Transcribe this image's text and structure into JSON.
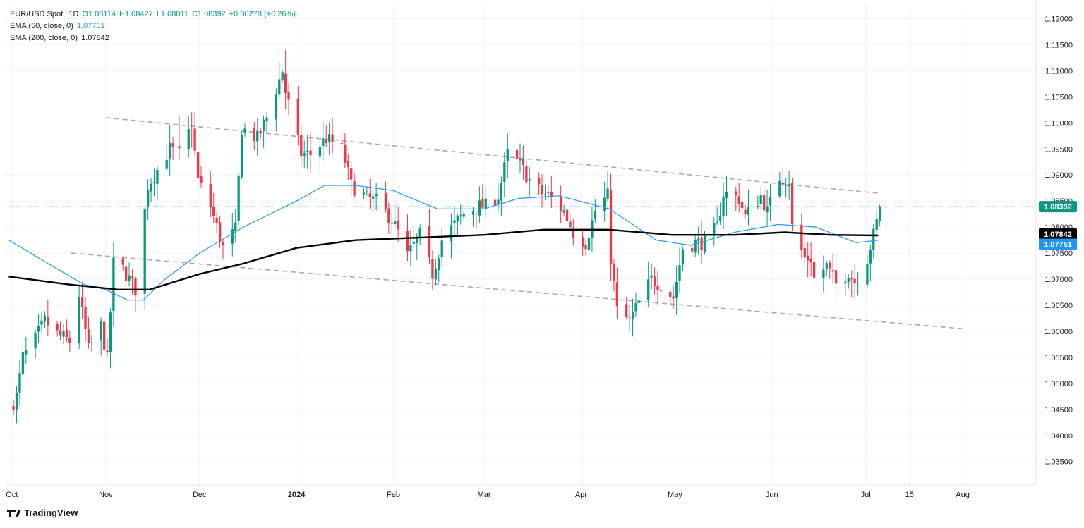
{
  "legend": {
    "symbol": "EUR/USD Spot",
    "interval": "1D",
    "open": "O1.08114",
    "high": "H1.08427",
    "low": "L1.08011",
    "close": "C1.08392",
    "change": "+0.00278 (+0.26%)",
    "ema50_label": "EMA (50, close, 0)",
    "ema50_value": "1.07751",
    "ema200_label": "EMA (200, close, 0)",
    "ema200_value": "1.07842"
  },
  "branding": {
    "logo_text": "TradingView"
  },
  "colors": {
    "up": "#089981",
    "down": "#f23645",
    "ema50": "#2196f3",
    "ema200": "#000000",
    "trend": "#a9a9a9",
    "last_price_line": "#089981",
    "grid": "#f0f3fa"
  },
  "price_labels": {
    "last": "1.08392",
    "ema200": "1.07842",
    "ema50": "1.07751"
  },
  "chart_data": {
    "type": "candlestick",
    "ylim": [
      1.0305,
      1.1225
    ],
    "xlim": [
      "2023-09-30",
      "2024-08-24"
    ],
    "y_ticks": [
      "1.12000",
      "1.11500",
      "1.11000",
      "1.10500",
      "1.10000",
      "1.09500",
      "1.09000",
      "1.08500",
      "1.08000",
      "1.07500",
      "1.07000",
      "1.06500",
      "1.06000",
      "1.05500",
      "1.05000",
      "1.04500",
      "1.04000",
      "1.03500"
    ],
    "x_ticks": [
      {
        "date": "2023-10-02",
        "label": "Oct"
      },
      {
        "date": "2023-11-01",
        "label": "Nov"
      },
      {
        "date": "2023-12-01",
        "label": "Dec"
      },
      {
        "date": "2024-01-01",
        "label": "2024"
      },
      {
        "date": "2024-02-01",
        "label": "Feb"
      },
      {
        "date": "2024-03-01",
        "label": "Mar"
      },
      {
        "date": "2024-04-01",
        "label": "Apr"
      },
      {
        "date": "2024-05-01",
        "label": "May"
      },
      {
        "date": "2024-06-01",
        "label": "Jun"
      },
      {
        "date": "2024-07-01",
        "label": "Jul"
      },
      {
        "date": "2024-07-15",
        "label": "15"
      },
      {
        "date": "2024-08-01",
        "label": "Aug"
      }
    ],
    "close_anchors": [
      [
        "2023-10-02",
        1.0465
      ],
      [
        "2023-10-03",
        1.0475
      ],
      [
        "2023-10-05",
        1.055
      ],
      [
        "2023-10-09",
        1.0585
      ],
      [
        "2023-10-12",
        1.062
      ],
      [
        "2023-10-16",
        1.0595
      ],
      [
        "2023-10-20",
        1.058
      ],
      [
        "2023-10-23",
        1.067
      ],
      [
        "2023-10-26",
        1.0565
      ],
      [
        "2023-10-30",
        1.061
      ],
      [
        "2023-11-01",
        1.0545
      ],
      [
        "2023-11-03",
        1.073
      ],
      [
        "2023-11-06",
        1.072
      ],
      [
        "2023-11-10",
        1.068
      ],
      [
        "2023-11-14",
        1.088
      ],
      [
        "2023-11-17",
        1.091
      ],
      [
        "2023-11-21",
        1.095
      ],
      [
        "2023-11-24",
        1.094
      ],
      [
        "2023-11-28",
        1.0995
      ],
      [
        "2023-11-30",
        1.089
      ],
      [
        "2023-12-04",
        1.084
      ],
      [
        "2023-12-07",
        1.078
      ],
      [
        "2023-12-08",
        1.076
      ],
      [
        "2023-12-12",
        1.0795
      ],
      [
        "2023-12-14",
        1.099
      ],
      [
        "2023-12-19",
        1.097
      ],
      [
        "2023-12-22",
        1.101
      ],
      [
        "2023-12-27",
        1.11
      ],
      [
        "2023-12-28",
        1.106
      ],
      [
        "2024-01-02",
        1.094
      ],
      [
        "2024-01-05",
        1.094
      ],
      [
        "2024-01-10",
        1.097
      ],
      [
        "2024-01-15",
        1.095
      ],
      [
        "2024-01-18",
        1.088
      ],
      [
        "2024-01-23",
        1.0855
      ],
      [
        "2024-01-26",
        1.085
      ],
      [
        "2024-01-31",
        1.0815
      ],
      [
        "2024-02-02",
        1.079
      ],
      [
        "2024-02-05",
        1.0745
      ],
      [
        "2024-02-09",
        1.0785
      ],
      [
        "2024-02-13",
        1.071
      ],
      [
        "2024-02-16",
        1.0775
      ],
      [
        "2024-02-20",
        1.0805
      ],
      [
        "2024-02-23",
        1.0825
      ],
      [
        "2024-02-28",
        1.084
      ],
      [
        "2024-03-01",
        1.084
      ],
      [
        "2024-03-05",
        1.086
      ],
      [
        "2024-03-08",
        1.094
      ],
      [
        "2024-03-12",
        1.092
      ],
      [
        "2024-03-15",
        1.089
      ],
      [
        "2024-03-19",
        1.0865
      ],
      [
        "2024-03-21",
        1.086
      ],
      [
        "2024-03-26",
        1.083
      ],
      [
        "2024-03-29",
        1.079
      ],
      [
        "2024-04-02",
        1.077
      ],
      [
        "2024-04-05",
        1.083
      ],
      [
        "2024-04-09",
        1.086
      ],
      [
        "2024-04-10",
        1.074
      ],
      [
        "2024-04-12",
        1.064
      ],
      [
        "2024-04-16",
        1.062
      ],
      [
        "2024-04-19",
        1.0655
      ],
      [
        "2024-04-23",
        1.07
      ],
      [
        "2024-04-26",
        1.069
      ],
      [
        "2024-04-30",
        1.0665
      ],
      [
        "2024-05-03",
        1.076
      ],
      [
        "2024-05-07",
        1.077
      ],
      [
        "2024-05-10",
        1.077
      ],
      [
        "2024-05-14",
        1.08
      ],
      [
        "2024-05-16",
        1.0865
      ],
      [
        "2024-05-21",
        1.0855
      ],
      [
        "2024-05-23",
        1.082
      ],
      [
        "2024-05-28",
        1.086
      ],
      [
        "2024-05-30",
        1.083
      ],
      [
        "2024-06-03",
        1.0895
      ],
      [
        "2024-06-06",
        1.089
      ],
      [
        "2024-06-07",
        1.08
      ],
      [
        "2024-06-11",
        1.074
      ],
      [
        "2024-06-13",
        1.074
      ],
      [
        "2024-06-14",
        1.07
      ],
      [
        "2024-06-18",
        1.0725
      ],
      [
        "2024-06-21",
        1.069
      ],
      [
        "2024-06-25",
        1.0715
      ],
      [
        "2024-06-27",
        1.0695
      ],
      [
        "2024-07-01",
        1.074
      ],
      [
        "2024-07-03",
        1.0785
      ],
      [
        "2024-07-04",
        1.081
      ],
      [
        "2024-07-05",
        1.0839
      ]
    ],
    "high_low_anchors": [
      [
        "2023-10-03",
        1.0448
      ],
      [
        "2023-11-24",
        1.1015
      ],
      [
        "2023-12-28",
        1.114
      ],
      [
        "2024-02-14",
        1.0695
      ],
      [
        "2024-03-08",
        1.098
      ],
      [
        "2024-04-16",
        1.0601
      ],
      [
        "2024-06-04",
        1.0915
      ],
      [
        "2024-06-26",
        1.0665
      ]
    ],
    "last_candle": {
      "date": "2024-07-05",
      "open": 1.08114,
      "high": 1.08427,
      "low": 1.08011,
      "close": 1.08392
    },
    "ema50": [
      [
        "2023-10-01",
        1.0775
      ],
      [
        "2023-10-15",
        1.0725
      ],
      [
        "2023-10-25",
        1.069
      ],
      [
        "2023-11-01",
        1.068
      ],
      [
        "2023-11-08",
        1.066
      ],
      [
        "2023-11-13",
        1.066
      ],
      [
        "2023-11-20",
        1.07
      ],
      [
        "2023-12-01",
        1.075
      ],
      [
        "2023-12-15",
        1.08
      ],
      [
        "2024-01-01",
        1.085
      ],
      [
        "2024-01-10",
        1.088
      ],
      [
        "2024-01-20",
        1.088
      ],
      [
        "2024-02-01",
        1.087
      ],
      [
        "2024-02-15",
        1.0835
      ],
      [
        "2024-03-01",
        1.0835
      ],
      [
        "2024-03-12",
        1.0855
      ],
      [
        "2024-03-25",
        1.086
      ],
      [
        "2024-04-10",
        1.0835
      ],
      [
        "2024-04-25",
        1.0775
      ],
      [
        "2024-05-06",
        1.0765
      ],
      [
        "2024-05-20",
        1.079
      ],
      [
        "2024-06-03",
        1.0805
      ],
      [
        "2024-06-15",
        1.08
      ],
      [
        "2024-06-28",
        1.077
      ],
      [
        "2024-07-05",
        1.0775
      ]
    ],
    "ema200": [
      [
        "2023-10-01",
        1.0705
      ],
      [
        "2023-10-20",
        1.069
      ],
      [
        "2023-11-05",
        1.068
      ],
      [
        "2023-11-15",
        1.068
      ],
      [
        "2023-12-01",
        1.071
      ],
      [
        "2023-12-15",
        1.073
      ],
      [
        "2024-01-01",
        1.076
      ],
      [
        "2024-01-20",
        1.0775
      ],
      [
        "2024-02-10",
        1.078
      ],
      [
        "2024-03-01",
        1.0785
      ],
      [
        "2024-03-20",
        1.0795
      ],
      [
        "2024-04-10",
        1.0795
      ],
      [
        "2024-04-30",
        1.0785
      ],
      [
        "2024-05-20",
        1.0785
      ],
      [
        "2024-06-05",
        1.079
      ],
      [
        "2024-06-20",
        1.0785
      ],
      [
        "2024-07-05",
        1.0784
      ]
    ],
    "trendlines": [
      {
        "x1": "2023-11-01",
        "y1": 1.101,
        "x2": "2024-07-05",
        "y2": 1.0865
      },
      {
        "x1": "2023-10-21",
        "y1": 1.075,
        "x2": "2024-08-01",
        "y2": 1.0605
      }
    ],
    "last_price": 1.08392,
    "grid": true
  }
}
